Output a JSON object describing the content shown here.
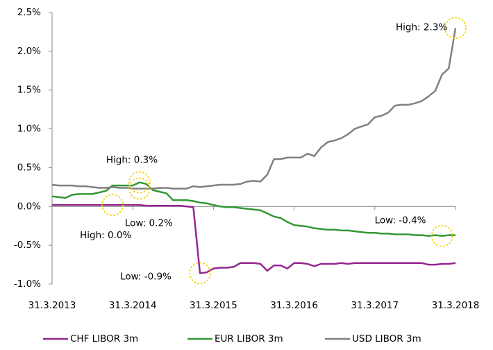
{
  "chart_data": {
    "type": "line",
    "x": [
      "2013-03",
      "2013-04",
      "2013-05",
      "2013-06",
      "2013-07",
      "2013-08",
      "2013-09",
      "2013-10",
      "2013-11",
      "2013-12",
      "2014-01",
      "2014-02",
      "2014-03",
      "2014-04",
      "2014-05",
      "2014-06",
      "2014-07",
      "2014-08",
      "2014-09",
      "2014-10",
      "2014-11",
      "2014-12",
      "2015-01",
      "2015-02",
      "2015-03",
      "2015-04",
      "2015-05",
      "2015-06",
      "2015-07",
      "2015-08",
      "2015-09",
      "2015-10",
      "2015-11",
      "2015-12",
      "2016-01",
      "2016-02",
      "2016-03",
      "2016-04",
      "2016-05",
      "2016-06",
      "2016-07",
      "2016-08",
      "2016-09",
      "2016-10",
      "2016-11",
      "2016-12",
      "2017-01",
      "2017-02",
      "2017-03",
      "2017-04",
      "2017-05",
      "2017-06",
      "2017-07",
      "2017-08",
      "2017-09",
      "2017-10",
      "2017-11",
      "2017-12",
      "2018-01",
      "2018-02",
      "2018-03"
    ],
    "series": [
      {
        "name": "CHF LIBOR 3m",
        "color": "#93278f",
        "values": [
          0.02,
          0.02,
          0.02,
          0.02,
          0.02,
          0.02,
          0.02,
          0.02,
          0.02,
          0.02,
          0.02,
          0.02,
          0.02,
          0.02,
          0.01,
          0.01,
          0.01,
          0.01,
          0.01,
          0.01,
          0.0,
          -0.01,
          -0.86,
          -0.85,
          -0.8,
          -0.79,
          -0.79,
          -0.78,
          -0.73,
          -0.73,
          -0.73,
          -0.74,
          -0.83,
          -0.76,
          -0.76,
          -0.8,
          -0.73,
          -0.73,
          -0.74,
          -0.77,
          -0.74,
          -0.74,
          -0.74,
          -0.73,
          -0.74,
          -0.73,
          -0.73,
          -0.73,
          -0.73,
          -0.73,
          -0.73,
          -0.73,
          -0.73,
          -0.73,
          -0.73,
          -0.73,
          -0.75,
          -0.75,
          -0.74,
          -0.74,
          -0.73
        ]
      },
      {
        "name": "EUR LIBOR 3m",
        "color": "#339933",
        "values": [
          0.13,
          0.12,
          0.11,
          0.15,
          0.16,
          0.16,
          0.16,
          0.18,
          0.2,
          0.27,
          0.27,
          0.27,
          0.27,
          0.31,
          0.29,
          0.21,
          0.19,
          0.17,
          0.08,
          0.08,
          0.08,
          0.07,
          0.05,
          0.04,
          0.02,
          0.0,
          -0.01,
          -0.01,
          -0.02,
          -0.03,
          -0.04,
          -0.05,
          -0.09,
          -0.13,
          -0.15,
          -0.2,
          -0.24,
          -0.25,
          -0.26,
          -0.28,
          -0.29,
          -0.3,
          -0.3,
          -0.31,
          -0.31,
          -0.32,
          -0.33,
          -0.34,
          -0.34,
          -0.35,
          -0.35,
          -0.36,
          -0.36,
          -0.36,
          -0.37,
          -0.37,
          -0.38,
          -0.37,
          -0.38,
          -0.37,
          -0.37
        ]
      },
      {
        "name": "USD LIBOR 3m",
        "color": "#808080",
        "values": [
          0.28,
          0.27,
          0.27,
          0.27,
          0.26,
          0.26,
          0.25,
          0.24,
          0.24,
          0.25,
          0.24,
          0.24,
          0.23,
          0.23,
          0.23,
          0.23,
          0.24,
          0.24,
          0.23,
          0.23,
          0.23,
          0.26,
          0.25,
          0.26,
          0.27,
          0.28,
          0.28,
          0.28,
          0.29,
          0.32,
          0.33,
          0.32,
          0.41,
          0.61,
          0.61,
          0.63,
          0.63,
          0.63,
          0.68,
          0.65,
          0.76,
          0.83,
          0.85,
          0.88,
          0.93,
          1.0,
          1.03,
          1.06,
          1.15,
          1.17,
          1.21,
          1.3,
          1.31,
          1.31,
          1.33,
          1.36,
          1.42,
          1.49,
          1.7,
          1.78,
          2.3
        ]
      }
    ],
    "xlim": [
      "2013-03",
      "2018-03"
    ],
    "xticks": [
      {
        "value": "2013-03",
        "label": "31.3.2013"
      },
      {
        "value": "2014-03",
        "label": "31.3.2014"
      },
      {
        "value": "2015-03",
        "label": "31.3.2015"
      },
      {
        "value": "2016-03",
        "label": "31.3.2016"
      },
      {
        "value": "2017-03",
        "label": "31.3.2017"
      },
      {
        "value": "2018-03",
        "label": "31.3.2018"
      }
    ],
    "ylim": [
      -1,
      2.5
    ],
    "yticks": [
      {
        "value": -1,
        "label": "-1.0%"
      },
      {
        "value": -0.5,
        "label": "-0.5%"
      },
      {
        "value": 0,
        "label": "0.0%"
      },
      {
        "value": 0.5,
        "label": "0.5%"
      },
      {
        "value": 1,
        "label": "1.0%"
      },
      {
        "value": 1.5,
        "label": "1.5%"
      },
      {
        "value": 2,
        "label": "2.0%"
      },
      {
        "value": 2.5,
        "label": "2.5%"
      }
    ],
    "annotations": [
      {
        "text": "High: 2.3%",
        "x": "2018-03",
        "y": 2.3
      },
      {
        "text": "High: 0.3%",
        "x": "2014-04",
        "y": 0.31
      },
      {
        "text": "Low: 0.2%",
        "x": "2014-04",
        "y": 0.23
      },
      {
        "text": "High: 0.0%",
        "x": "2013-12",
        "y": 0.02
      },
      {
        "text": "Low: -0.9%",
        "x": "2015-01",
        "y": -0.86
      },
      {
        "text": "Low: -0.4%",
        "x": "2018-01",
        "y": -0.38
      }
    ],
    "legend": "bottom"
  }
}
